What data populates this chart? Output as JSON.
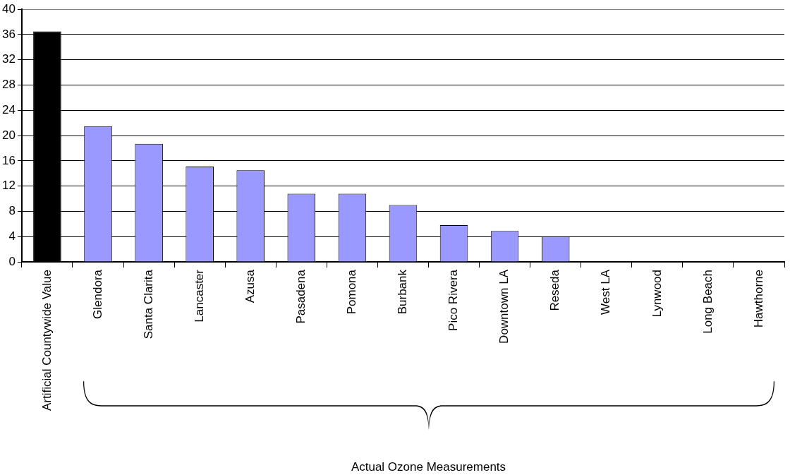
{
  "chart_data": {
    "type": "bar",
    "categories": [
      "Artificial Countywide Value",
      "Glendora",
      "Santa Clarita",
      "Lancaster",
      "Azusa",
      "Pasadena",
      "Pomona",
      "Burbank",
      "Pico Rivera",
      "Downtown LA",
      "Reseda",
      "West LA",
      "Lynwood",
      "Long Beach",
      "Hawthorne"
    ],
    "values": [
      36.5,
      21.5,
      18.7,
      15.1,
      14.5,
      10.8,
      10.8,
      9.0,
      5.8,
      4.9,
      4.0,
      0,
      0,
      0,
      0
    ],
    "colors": [
      "#000000",
      "#9999ff",
      "#9999ff",
      "#9999ff",
      "#9999ff",
      "#9999ff",
      "#9999ff",
      "#9999ff",
      "#9999ff",
      "#9999ff",
      "#9999ff",
      "#9999ff",
      "#9999ff",
      "#9999ff",
      "#9999ff"
    ],
    "ylim": [
      0,
      40
    ],
    "yticks": [
      0,
      4,
      8,
      12,
      16,
      20,
      24,
      28,
      32,
      36,
      40
    ],
    "grid": "y",
    "legend": false,
    "annotations": [
      "Actual Ozone Measurements"
    ]
  }
}
